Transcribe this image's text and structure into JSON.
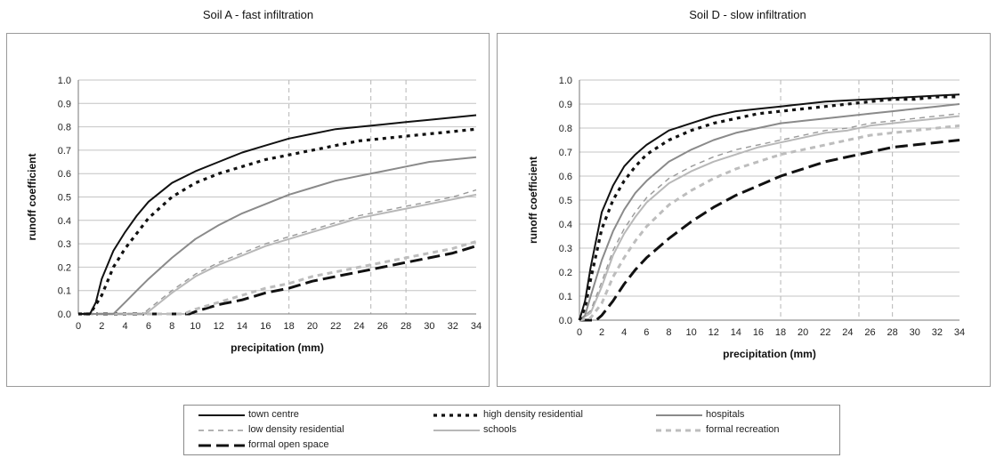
{
  "chart_data": [
    {
      "type": "line",
      "title": "Soil A - fast infiltration",
      "xlabel": "precipitation (mm)",
      "ylabel": "runoff coefficient",
      "xlim": [
        0,
        34
      ],
      "ylim": [
        0,
        1.0
      ],
      "x_ticks": [
        "0",
        "2",
        "4",
        "6",
        "8",
        "10",
        "12",
        "14",
        "16",
        "18",
        "20",
        "22",
        "24",
        "26",
        "28",
        "30",
        "32",
        "34"
      ],
      "y_ticks": [
        "0.0",
        "0.1",
        "0.2",
        "0.3",
        "0.4",
        "0.5",
        "0.6",
        "0.7",
        "0.8",
        "0.9",
        "1.0"
      ],
      "grid": true,
      "series": [
        {
          "name": "town centre",
          "x": [
            0,
            1,
            1.5,
            2,
            3,
            4,
            5,
            6,
            8,
            10,
            12,
            14,
            16,
            18,
            20,
            22,
            24,
            26,
            28,
            30,
            32,
            34
          ],
          "values": [
            0,
            0,
            0.05,
            0.15,
            0.27,
            0.35,
            0.42,
            0.48,
            0.56,
            0.61,
            0.65,
            0.69,
            0.72,
            0.75,
            0.77,
            0.79,
            0.8,
            0.81,
            0.82,
            0.83,
            0.84,
            0.85
          ]
        },
        {
          "name": "high density residential",
          "x": [
            0,
            1,
            2,
            3,
            4,
            6,
            8,
            10,
            12,
            14,
            16,
            18,
            20,
            22,
            24,
            26,
            28,
            30,
            32,
            34
          ],
          "values": [
            0,
            0,
            0.08,
            0.2,
            0.28,
            0.41,
            0.5,
            0.56,
            0.6,
            0.63,
            0.66,
            0.68,
            0.7,
            0.72,
            0.74,
            0.75,
            0.76,
            0.77,
            0.78,
            0.79
          ]
        },
        {
          "name": "hospitals",
          "x": [
            0,
            3,
            4,
            5,
            6,
            8,
            10,
            12,
            14,
            16,
            18,
            20,
            22,
            24,
            26,
            28,
            30,
            32,
            34
          ],
          "values": [
            0,
            0,
            0.05,
            0.1,
            0.15,
            0.24,
            0.32,
            0.38,
            0.43,
            0.47,
            0.51,
            0.54,
            0.57,
            0.59,
            0.61,
            0.63,
            0.65,
            0.66,
            0.67
          ]
        },
        {
          "name": "low density residential",
          "x": [
            0,
            5.5,
            6,
            7,
            8,
            10,
            12,
            14,
            16,
            18,
            20,
            22,
            24,
            26,
            28,
            30,
            32,
            34
          ],
          "values": [
            0,
            0,
            0.02,
            0.06,
            0.1,
            0.17,
            0.22,
            0.26,
            0.3,
            0.33,
            0.36,
            0.39,
            0.42,
            0.44,
            0.46,
            0.48,
            0.5,
            0.53
          ]
        },
        {
          "name": "schools",
          "x": [
            0,
            5.5,
            6,
            7,
            8,
            10,
            12,
            14,
            16,
            18,
            20,
            22,
            24,
            26,
            28,
            30,
            32,
            34
          ],
          "values": [
            0,
            0,
            0.01,
            0.05,
            0.09,
            0.16,
            0.21,
            0.25,
            0.29,
            0.32,
            0.35,
            0.38,
            0.41,
            0.43,
            0.45,
            0.47,
            0.49,
            0.51
          ]
        },
        {
          "name": "formal recreation",
          "x": [
            0,
            9,
            10,
            12,
            14,
            16,
            18,
            20,
            22,
            24,
            26,
            28,
            30,
            32,
            34
          ],
          "values": [
            0,
            0,
            0.02,
            0.05,
            0.08,
            0.11,
            0.13,
            0.16,
            0.18,
            0.2,
            0.22,
            0.24,
            0.26,
            0.28,
            0.31
          ]
        },
        {
          "name": "formal open space",
          "x": [
            0,
            9.5,
            10,
            12,
            14,
            16,
            18,
            20,
            22,
            24,
            26,
            28,
            30,
            32,
            34
          ],
          "values": [
            0,
            0,
            0.01,
            0.04,
            0.06,
            0.09,
            0.11,
            0.14,
            0.16,
            0.18,
            0.2,
            0.22,
            0.24,
            0.26,
            0.29
          ]
        }
      ]
    },
    {
      "type": "line",
      "title": "Soil D - slow infiltration",
      "xlabel": "precipitation (mm)",
      "ylabel": "runoff coefficient",
      "xlim": [
        0,
        34
      ],
      "ylim": [
        0,
        1.0
      ],
      "x_ticks": [
        "0",
        "2",
        "4",
        "6",
        "8",
        "10",
        "12",
        "14",
        "16",
        "18",
        "20",
        "22",
        "24",
        "26",
        "28",
        "30",
        "32",
        "34"
      ],
      "y_ticks": [
        "0.0",
        "0.1",
        "0.2",
        "0.3",
        "0.4",
        "0.5",
        "0.6",
        "0.7",
        "0.8",
        "0.9",
        "1.0"
      ],
      "grid": true,
      "series": [
        {
          "name": "town centre",
          "x": [
            0,
            0.5,
            1,
            2,
            3,
            4,
            5,
            6,
            8,
            10,
            12,
            14,
            16,
            18,
            20,
            22,
            24,
            26,
            28,
            30,
            32,
            34
          ],
          "values": [
            0,
            0.08,
            0.22,
            0.45,
            0.56,
            0.64,
            0.69,
            0.73,
            0.79,
            0.82,
            0.85,
            0.87,
            0.88,
            0.89,
            0.9,
            0.91,
            0.915,
            0.92,
            0.925,
            0.93,
            0.935,
            0.94
          ]
        },
        {
          "name": "high density residential",
          "x": [
            0,
            0.5,
            1,
            2,
            3,
            4,
            5,
            6,
            8,
            10,
            12,
            14,
            16,
            18,
            20,
            22,
            24,
            26,
            28,
            30,
            32,
            34
          ],
          "values": [
            0,
            0.05,
            0.17,
            0.38,
            0.5,
            0.58,
            0.64,
            0.69,
            0.75,
            0.79,
            0.82,
            0.84,
            0.86,
            0.87,
            0.88,
            0.89,
            0.9,
            0.91,
            0.92,
            0.92,
            0.93,
            0.93
          ]
        },
        {
          "name": "hospitals",
          "x": [
            0,
            0.5,
            1,
            2,
            3,
            4,
            5,
            6,
            8,
            10,
            12,
            14,
            16,
            18,
            20,
            22,
            24,
            26,
            28,
            30,
            32,
            34
          ],
          "values": [
            0,
            0.02,
            0.1,
            0.25,
            0.37,
            0.46,
            0.53,
            0.58,
            0.66,
            0.71,
            0.75,
            0.78,
            0.8,
            0.82,
            0.83,
            0.84,
            0.85,
            0.86,
            0.87,
            0.88,
            0.89,
            0.9
          ]
        },
        {
          "name": "low density residential",
          "x": [
            0,
            1,
            2,
            3,
            4,
            5,
            6,
            8,
            10,
            12,
            14,
            16,
            18,
            20,
            22,
            24,
            26,
            28,
            30,
            32,
            34
          ],
          "values": [
            0,
            0.04,
            0.16,
            0.29,
            0.38,
            0.45,
            0.51,
            0.59,
            0.64,
            0.68,
            0.71,
            0.73,
            0.75,
            0.77,
            0.79,
            0.8,
            0.82,
            0.83,
            0.84,
            0.85,
            0.86
          ]
        },
        {
          "name": "schools",
          "x": [
            0,
            1,
            2,
            3,
            4,
            5,
            6,
            8,
            10,
            12,
            14,
            16,
            18,
            20,
            22,
            24,
            26,
            28,
            30,
            32,
            34
          ],
          "values": [
            0,
            0.03,
            0.14,
            0.27,
            0.36,
            0.43,
            0.49,
            0.57,
            0.62,
            0.66,
            0.69,
            0.72,
            0.74,
            0.76,
            0.78,
            0.79,
            0.81,
            0.82,
            0.83,
            0.84,
            0.85
          ]
        },
        {
          "name": "formal recreation",
          "x": [
            0,
            1,
            2,
            3,
            4,
            5,
            6,
            8,
            10,
            12,
            14,
            16,
            18,
            20,
            22,
            24,
            26,
            28,
            30,
            32,
            34
          ],
          "values": [
            0,
            0.01,
            0.07,
            0.18,
            0.26,
            0.33,
            0.39,
            0.48,
            0.54,
            0.59,
            0.63,
            0.66,
            0.69,
            0.71,
            0.73,
            0.75,
            0.77,
            0.78,
            0.79,
            0.8,
            0.81
          ]
        },
        {
          "name": "formal open space",
          "x": [
            0,
            1.5,
            2,
            3,
            4,
            5,
            6,
            8,
            10,
            12,
            14,
            16,
            18,
            20,
            22,
            24,
            26,
            28,
            30,
            32,
            34
          ],
          "values": [
            0,
            0,
            0.02,
            0.08,
            0.15,
            0.21,
            0.26,
            0.34,
            0.41,
            0.47,
            0.52,
            0.56,
            0.6,
            0.63,
            0.66,
            0.68,
            0.7,
            0.72,
            0.73,
            0.74,
            0.75
          ]
        }
      ]
    }
  ],
  "legend": {
    "placement": "bottom",
    "items": [
      {
        "label": "town centre",
        "color": "#111111",
        "dash": "solid"
      },
      {
        "label": "high density residential",
        "color": "#111111",
        "dash": "dotted"
      },
      {
        "label": "hospitals",
        "color": "#8a8a8a",
        "dash": "solid"
      },
      {
        "label": "low density residential",
        "color": "#9a9a9a",
        "dash": "dashed-thin"
      },
      {
        "label": "schools",
        "color": "#b8b8b8",
        "dash": "solid"
      },
      {
        "label": "formal recreation",
        "color": "#bdbdbd",
        "dash": "dashed-light"
      },
      {
        "label": "formal open space",
        "color": "#111111",
        "dash": "dashed-long"
      }
    ]
  }
}
